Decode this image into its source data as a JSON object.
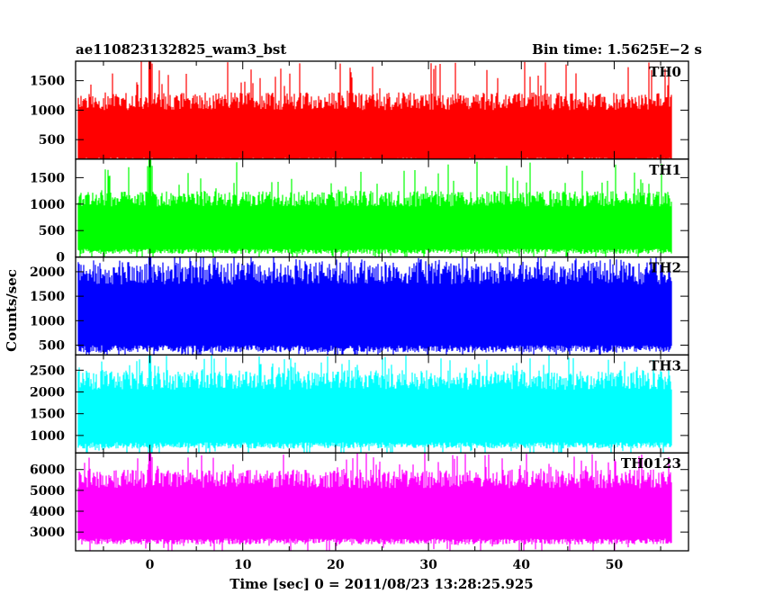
{
  "title_left": "ae110823132825_wam3_bst",
  "title_right": "Bin time: 1.5625E−2 s",
  "ylabel": "Counts/sec",
  "xlabel": "Time [sec] 0 = 2011/08/23 13:28:25.925",
  "chart_data": {
    "type": "line",
    "xlim": [
      -8,
      58
    ],
    "x_ticks": [
      0,
      10,
      20,
      30,
      40,
      50
    ],
    "x_range_data": [
      -7.7,
      56.2
    ],
    "panels": [
      {
        "name": "TH0",
        "color": "#ff0000",
        "ylim": [
          170,
          1830
        ],
        "y_ticks": [
          500,
          1000,
          1500
        ],
        "typ_low": 100,
        "typ_high": 1300,
        "peak": 1830,
        "spike_low": 700,
        "spike_high": 2000
      },
      {
        "name": "TH1",
        "color": "#00ff00",
        "ylim": [
          0,
          1850
        ],
        "y_ticks": [
          0,
          500,
          1000,
          1500
        ],
        "typ_low": 60,
        "typ_high": 1250,
        "peak": 1800,
        "spike_low": 550,
        "spike_high": 1900
      },
      {
        "name": "TH2",
        "color": "#0000ff",
        "ylim": [
          300,
          2300
        ],
        "y_ticks": [
          500,
          1000,
          1500,
          2000
        ],
        "typ_low": 350,
        "typ_high": 2200,
        "peak": 2300,
        "spike_low": 700,
        "spike_high": 2300
      },
      {
        "name": "TH3",
        "color": "#00ffff",
        "ylim": [
          600,
          2850
        ],
        "y_ticks": [
          1000,
          1500,
          2000,
          2500
        ],
        "typ_low": 700,
        "typ_high": 2500,
        "peak": 2850,
        "spike_low": 1100,
        "spike_high": 2850
      },
      {
        "name": "TH0123",
        "color": "#ff00ff",
        "ylim": [
          2100,
          6800
        ],
        "y_ticks": [
          3000,
          4000,
          5000,
          6000
        ],
        "typ_low": 2400,
        "typ_high": 6000,
        "peak": 6800,
        "spike_low": 3500,
        "spike_high": 6800
      }
    ]
  }
}
